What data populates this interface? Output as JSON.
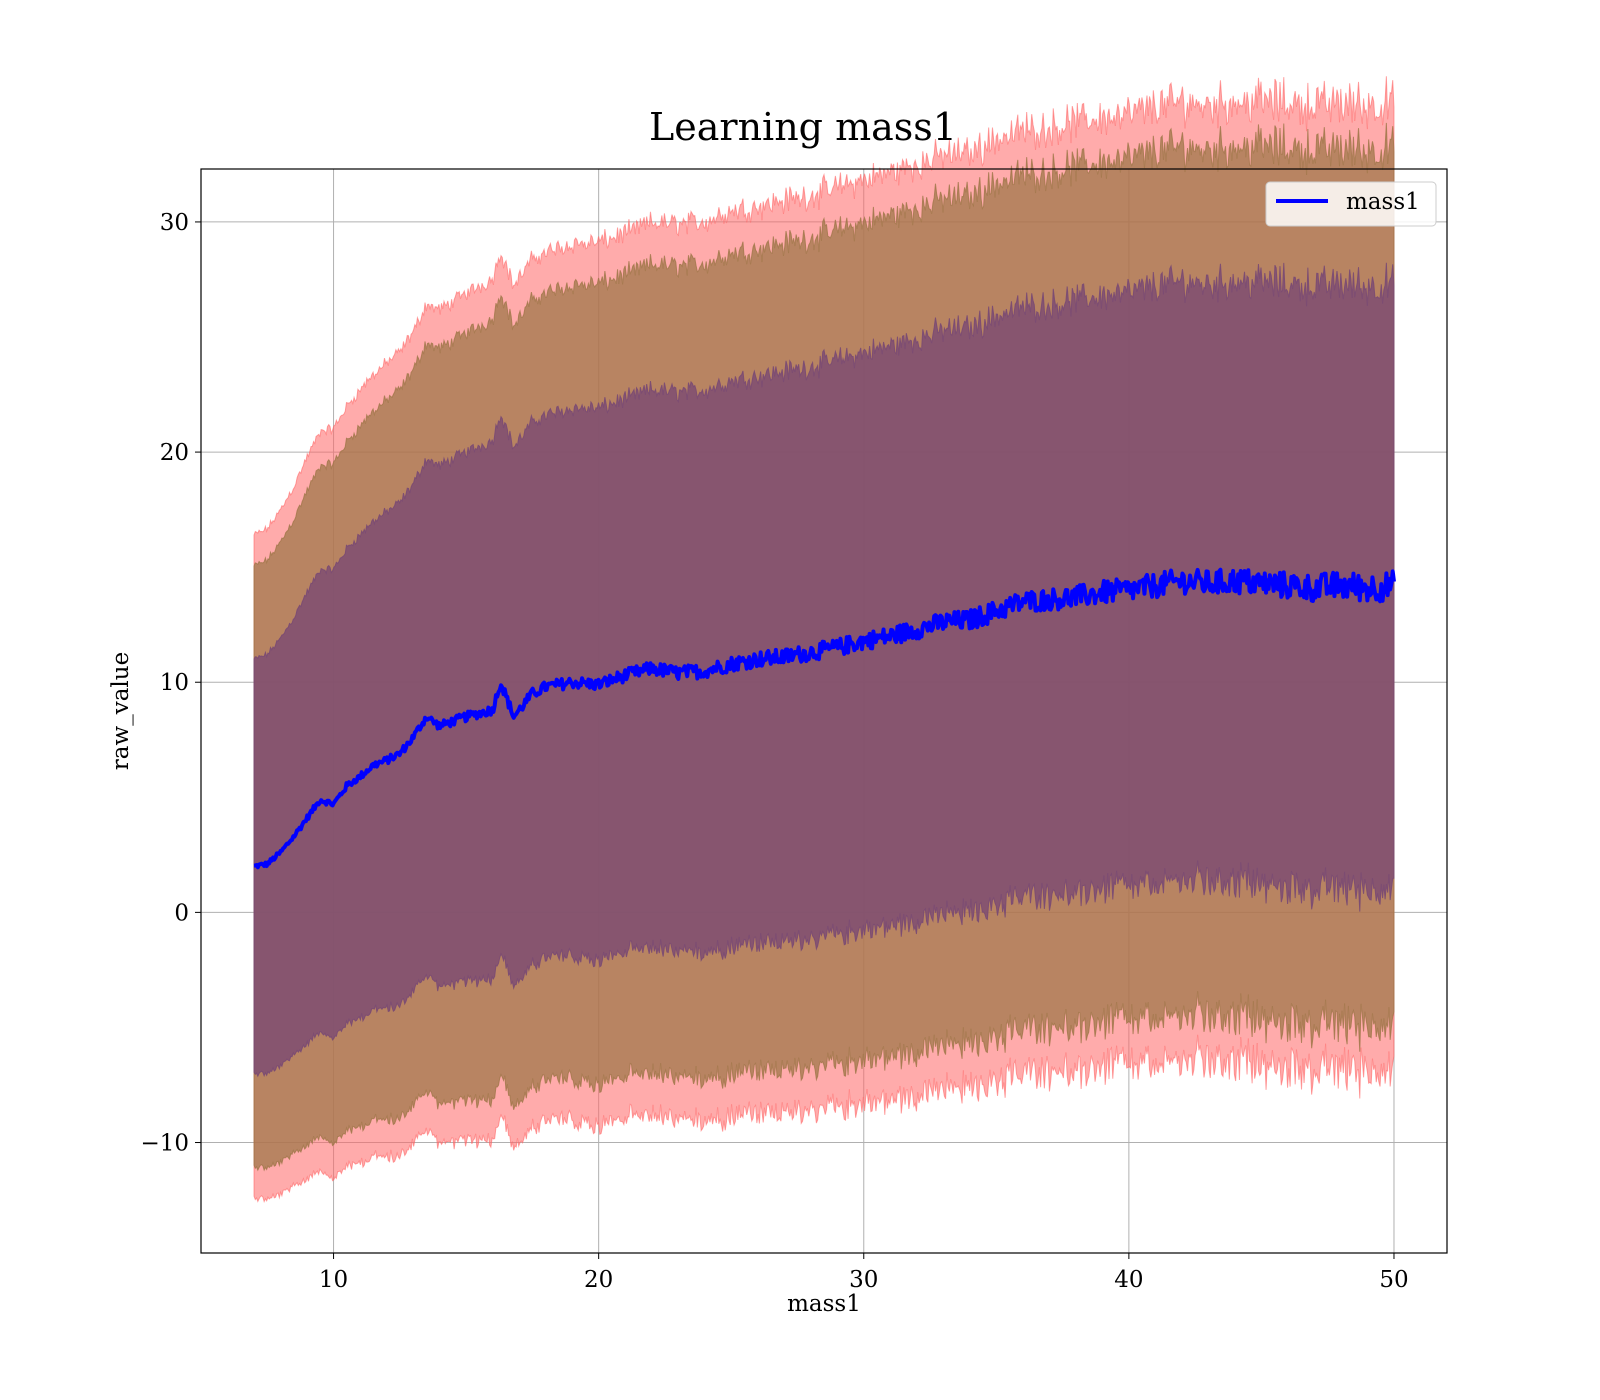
{
  "chart_data": {
    "type": "line",
    "title": "Learning mass1",
    "xlabel": "mass1",
    "ylabel": "raw_value",
    "xlim": [
      5,
      52
    ],
    "ylim": [
      -14.8,
      32.3
    ],
    "x_ticks": [
      10,
      20,
      30,
      40,
      50
    ],
    "x_tick_labels": [
      "10",
      "20",
      "30",
      "40",
      "50"
    ],
    "y_ticks": [
      -10,
      0,
      10,
      20,
      30
    ],
    "y_tick_labels": [
      "−10",
      "0",
      "10",
      "20",
      "30"
    ],
    "grid": true,
    "legend": {
      "placement": "top-right",
      "entries": [
        "mass1"
      ]
    },
    "colors": {
      "line": "#0000ff",
      "band_outer": "#ff6666",
      "band_middle": "#a0774a",
      "band_inner": "#7a4a73"
    },
    "series": [
      {
        "name": "mass1",
        "x": [
          7,
          7.5,
          8,
          8.5,
          9,
          9.5,
          10,
          10.5,
          11,
          11.5,
          12,
          12.5,
          13,
          13.5,
          14,
          15,
          16,
          16.3,
          16.8,
          17.5,
          18,
          19,
          20,
          21,
          22,
          23,
          24,
          25,
          26,
          27,
          28,
          29,
          30,
          31,
          32,
          33,
          34,
          35,
          36,
          37,
          38,
          39,
          40,
          41,
          42,
          43,
          44,
          45,
          46,
          47,
          48,
          49,
          50
        ],
        "mean": [
          2.0,
          2.1,
          2.6,
          3.3,
          4.1,
          4.9,
          4.7,
          5.5,
          5.9,
          6.4,
          6.6,
          6.9,
          7.6,
          8.5,
          8.1,
          8.5,
          8.8,
          10.0,
          8.5,
          9.5,
          9.8,
          10.0,
          9.9,
          10.3,
          10.6,
          10.4,
          10.5,
          10.8,
          11.0,
          11.1,
          11.3,
          11.5,
          11.8,
          12.0,
          12.3,
          12.6,
          12.7,
          13.1,
          13.5,
          13.6,
          13.7,
          13.9,
          14.0,
          14.2,
          14.4,
          14.3,
          14.4,
          14.3,
          14.2,
          14.1,
          14.2,
          14.1,
          14.2
        ],
        "std": [
          9.0,
          9.1,
          9.3,
          9.5,
          9.8,
          10.0,
          10.2,
          10.3,
          10.5,
          10.6,
          10.8,
          10.9,
          11.0,
          11.2,
          11.3,
          11.5,
          11.7,
          11.7,
          11.7,
          11.8,
          11.8,
          11.9,
          12.0,
          12.0,
          12.1,
          12.2,
          12.2,
          12.3,
          12.3,
          12.4,
          12.4,
          12.5,
          12.5,
          12.6,
          12.6,
          12.7,
          12.7,
          12.8,
          12.8,
          12.8,
          12.9,
          12.9,
          12.9,
          13.0,
          13.0,
          13.0,
          13.0,
          13.1,
          13.1,
          13.1,
          13.1,
          13.1,
          13.1
        ]
      }
    ]
  }
}
